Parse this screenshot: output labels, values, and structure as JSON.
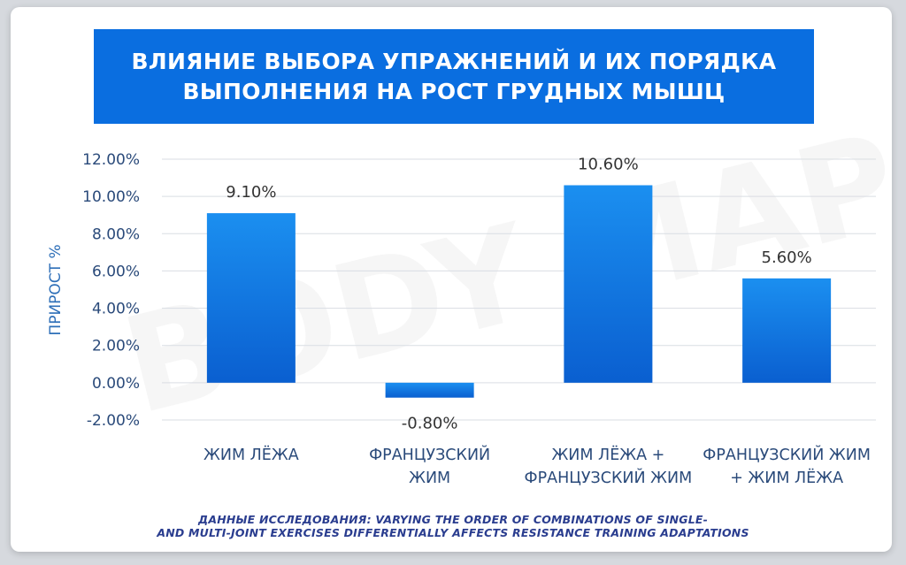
{
  "title_lines": [
    "ВЛИЯНИЕ ВЫБОРА УПРАЖНЕНИЙ И ИХ ПОРЯДКА",
    "ВЫПОЛНЕНИЯ НА РОСТ ГРУДНЫХ МЫШЦ"
  ],
  "watermark": "BODY MAP",
  "source_lines": [
    "ДАННЫЕ ИССЛЕДОВАНИЯ: VARYING THE ORDER OF COMBINATIONS OF SINGLE-",
    "AND MULTI-JOINT EXERCISES DIFFERENTIALLY AFFECTS RESISTANCE TRAINING ADAPTATIONS"
  ],
  "colors": {
    "banner": "#0a6ee0",
    "bar_top": "#1b8ff0",
    "bar_bottom": "#0a5fd0",
    "axis_text": "#2a4a7a",
    "grid": "#d9dde3"
  },
  "chart_data": {
    "type": "bar",
    "title": "ВЛИЯНИЕ ВЫБОРА УПРАЖНЕНИЙ И ИХ ПОРЯДКА ВЫПОЛНЕНИЯ НА РОСТ ГРУДНЫХ МЫШЦ",
    "ylabel": "ПРИРОСТ %",
    "xlabel": "",
    "ylim": [
      -2,
      12
    ],
    "ytick_step": 2,
    "ytick_labels": [
      "12.00%",
      "10.00%",
      "8.00%",
      "6.00%",
      "4.00%",
      "2.00%",
      "0.00%",
      "-2.00%"
    ],
    "grid": true,
    "categories": [
      [
        "ЖИМ ЛЁЖА"
      ],
      [
        "ФРАНЦУЗСКИЙ",
        "ЖИМ"
      ],
      [
        "ЖИМ ЛЁЖА +",
        "ФРАНЦУЗСКИЙ ЖИМ"
      ],
      [
        "ФРАНЦУЗСКИЙ ЖИМ",
        "+ ЖИМ ЛЁЖА"
      ]
    ],
    "values": [
      9.1,
      -0.8,
      10.6,
      5.6
    ],
    "data_labels": [
      "9.10%",
      "-0.80%",
      "10.60%",
      "5.60%"
    ]
  }
}
